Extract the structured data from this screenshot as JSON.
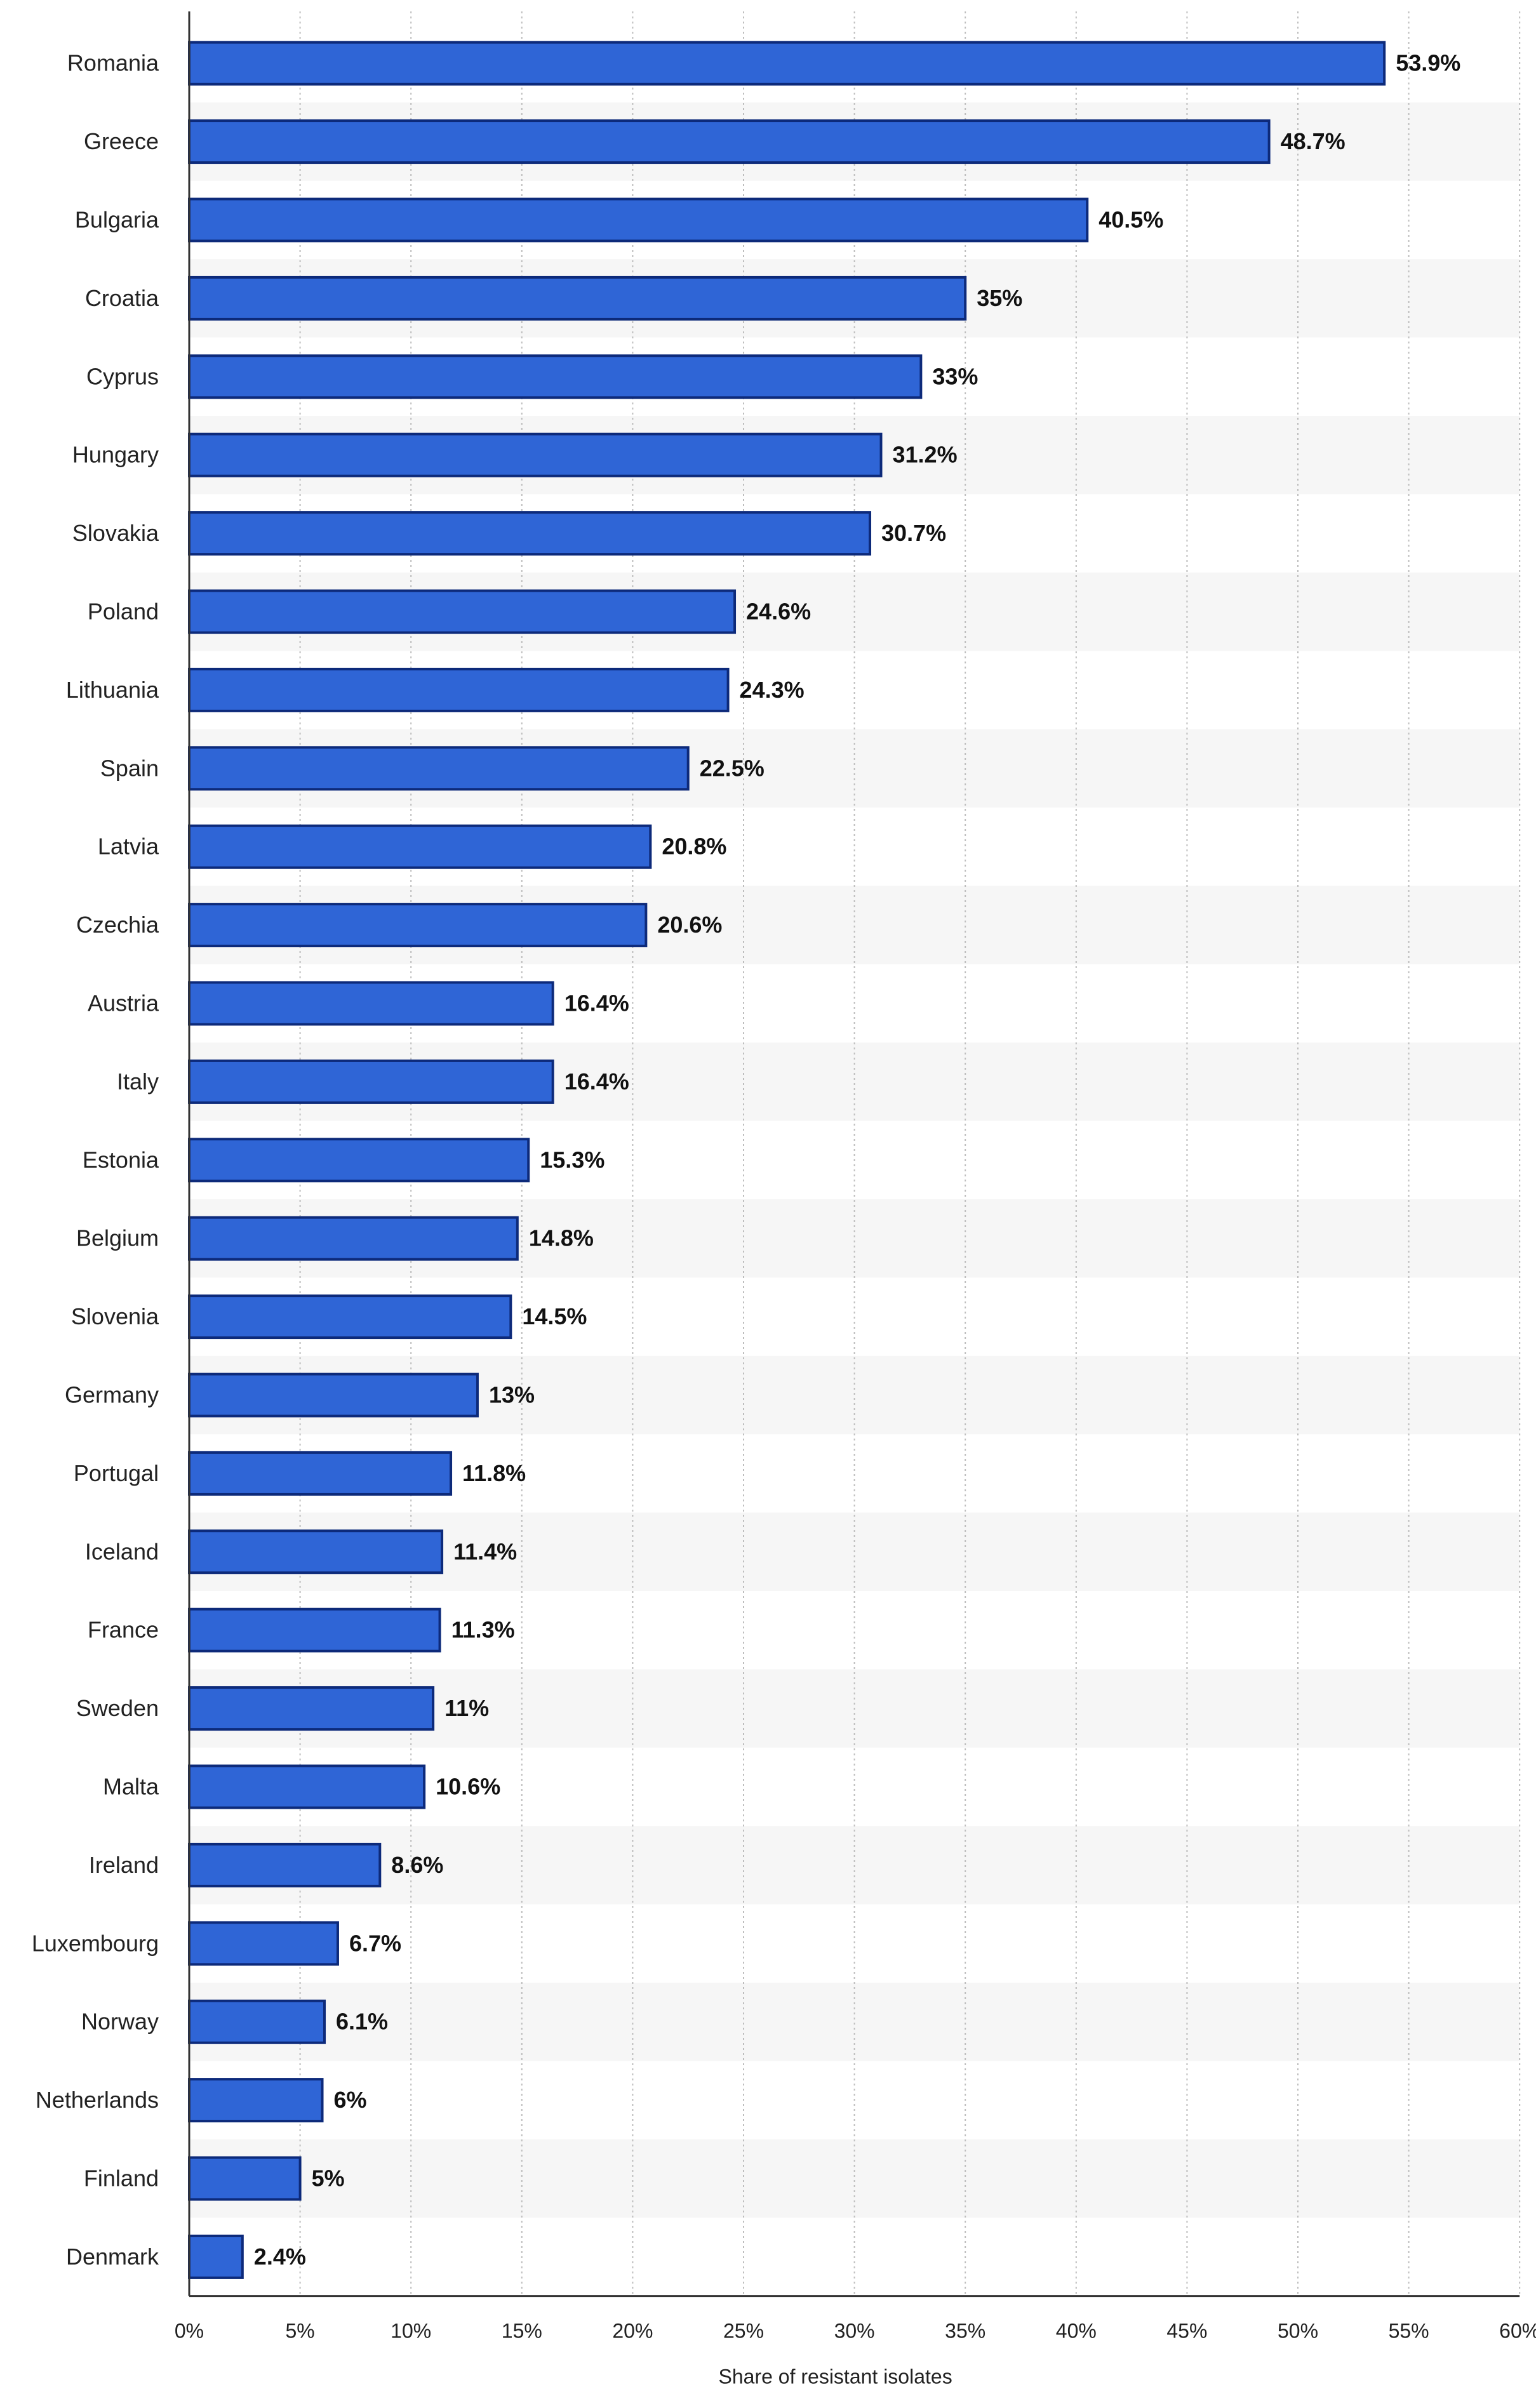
{
  "chart_data": {
    "type": "bar",
    "orientation": "horizontal",
    "categories": [
      "Romania",
      "Greece",
      "Bulgaria",
      "Croatia",
      "Cyprus",
      "Hungary",
      "Slovakia",
      "Poland",
      "Lithuania",
      "Spain",
      "Latvia",
      "Czechia",
      "Austria",
      "Italy",
      "Estonia",
      "Belgium",
      "Slovenia",
      "Germany",
      "Portugal",
      "Iceland",
      "France",
      "Sweden",
      "Malta",
      "Ireland",
      "Luxembourg",
      "Norway",
      "Netherlands",
      "Finland",
      "Denmark"
    ],
    "values": [
      53.9,
      48.7,
      40.5,
      35,
      33,
      31.2,
      30.7,
      24.6,
      24.3,
      22.5,
      20.8,
      20.6,
      16.4,
      16.4,
      15.3,
      14.8,
      14.5,
      13,
      11.8,
      11.4,
      11.3,
      11,
      10.6,
      8.6,
      6.7,
      6.1,
      6,
      5,
      2.4
    ],
    "value_labels": [
      "53.9%",
      "48.7%",
      "40.5%",
      "35%",
      "33%",
      "31.2%",
      "30.7%",
      "24.6%",
      "24.3%",
      "22.5%",
      "20.8%",
      "20.6%",
      "16.4%",
      "16.4%",
      "15.3%",
      "14.8%",
      "14.5%",
      "13%",
      "11.8%",
      "11.4%",
      "11.3%",
      "11%",
      "10.6%",
      "8.6%",
      "6.7%",
      "6.1%",
      "6%",
      "5%",
      "2.4%"
    ],
    "x_ticks": [
      0,
      5,
      10,
      15,
      20,
      25,
      30,
      35,
      40,
      45,
      50,
      55,
      60
    ],
    "x_tick_labels": [
      "0%",
      "5%",
      "10%",
      "15%",
      "20%",
      "25%",
      "30%",
      "35%",
      "40%",
      "45%",
      "50%",
      "55%",
      "60%"
    ],
    "xlim": [
      0,
      60
    ],
    "title": "",
    "xlabel": "Share of resistant isolates",
    "ylabel": "",
    "grid": true,
    "legend": "none",
    "colors": {
      "bar": "#2f65d6",
      "bar_edge": "#0d2a7a",
      "alt_row": "#f6f6f6",
      "grid": "#bdbdbd",
      "axis": "#333333"
    }
  }
}
